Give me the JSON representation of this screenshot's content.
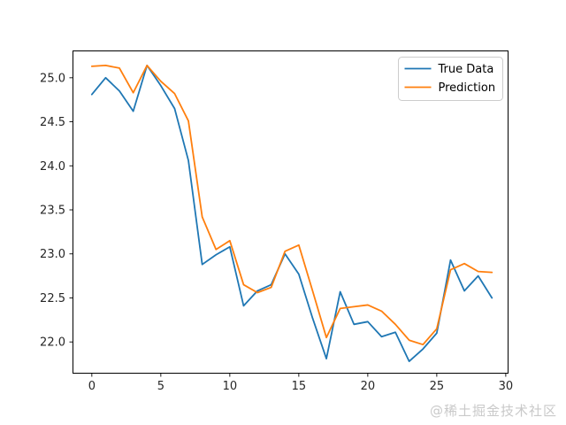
{
  "watermark": {
    "text": "@稀土掘金技术社区",
    "color": "#c9c9c9"
  },
  "chart_data": {
    "type": "line",
    "title": "",
    "xlabel": "",
    "ylabel": "",
    "x": [
      0,
      1,
      2,
      3,
      4,
      5,
      6,
      7,
      8,
      9,
      10,
      11,
      12,
      13,
      14,
      15,
      16,
      17,
      18,
      19,
      20,
      21,
      22,
      23,
      24,
      25,
      26,
      27,
      28,
      29
    ],
    "series": [
      {
        "name": "True Data",
        "color": "#1f77b4",
        "values": [
          24.81,
          25.0,
          24.85,
          24.62,
          25.14,
          24.91,
          24.65,
          24.06,
          22.88,
          22.99,
          23.08,
          22.41,
          22.58,
          22.65,
          23.0,
          22.77,
          22.27,
          21.81,
          22.57,
          22.2,
          22.23,
          22.06,
          22.11,
          21.78,
          21.92,
          22.1,
          22.93,
          22.58,
          22.75,
          22.5
        ]
      },
      {
        "name": "Prediction",
        "color": "#ff7f0e",
        "values": [
          25.13,
          25.14,
          25.11,
          24.83,
          25.14,
          24.96,
          24.82,
          24.51,
          23.42,
          23.05,
          23.15,
          22.65,
          22.56,
          22.62,
          23.03,
          23.1,
          22.58,
          22.05,
          22.38,
          22.4,
          22.42,
          22.35,
          22.2,
          22.02,
          21.97,
          22.15,
          22.82,
          22.89,
          22.8,
          22.79
        ]
      }
    ],
    "xlim": [
      -1.4,
      30.2
    ],
    "ylim": [
      21.64,
      25.31
    ],
    "xticks": [
      0,
      5,
      10,
      15,
      20,
      25,
      30
    ],
    "xtick_labels": [
      "0",
      "5",
      "10",
      "15",
      "20",
      "25",
      "30"
    ],
    "yticks": [
      22.0,
      22.5,
      23.0,
      23.5,
      24.0,
      24.5,
      25.0
    ],
    "ytick_labels": [
      "22.0",
      "22.5",
      "23.0",
      "23.5",
      "24.0",
      "24.5",
      "25.0"
    ],
    "grid": false,
    "legend": {
      "position": "upper right",
      "entries": [
        "True Data",
        "Prediction"
      ]
    },
    "axis_color": "#000000",
    "text_color": "#262626",
    "background": "#ffffff"
  }
}
